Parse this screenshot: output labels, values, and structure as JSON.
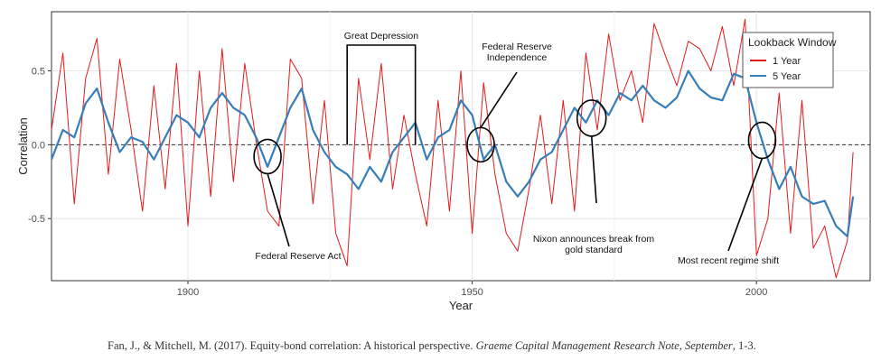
{
  "chart_data": {
    "type": "line",
    "title": "",
    "xlabel": "Year",
    "ylabel": "Correlation",
    "xlim": [
      1876,
      2020
    ],
    "ylim": [
      -0.92,
      0.9
    ],
    "x_ticks": [
      1900,
      1950,
      2000
    ],
    "y_ticks": [
      -0.5,
      0.0,
      0.5
    ],
    "x_tick_labels": [
      "1900",
      "1950",
      "2000"
    ],
    "y_tick_labels": [
      "-0.5",
      "0.0",
      "0.5"
    ],
    "reference_line": {
      "y": 0.0,
      "style": "dashed"
    },
    "grid": true,
    "legend": {
      "title": "Lookback Window",
      "placement": "top-right",
      "entries": [
        {
          "label": "1 Year",
          "color": "#e41a1c"
        },
        {
          "label": "5 Year",
          "color": "#377eb8"
        }
      ]
    },
    "series": [
      {
        "name": "1 Year",
        "color": "#e41a1c",
        "description": "high-frequency oscillation around the 5 Year series",
        "x": [
          1876,
          1878,
          1880,
          1882,
          1884,
          1886,
          1888,
          1890,
          1892,
          1894,
          1896,
          1898,
          1900,
          1902,
          1904,
          1906,
          1908,
          1910,
          1912,
          1914,
          1916,
          1918,
          1920,
          1922,
          1924,
          1926,
          1928,
          1930,
          1932,
          1934,
          1936,
          1938,
          1940,
          1942,
          1944,
          1946,
          1948,
          1950,
          1952,
          1954,
          1956,
          1958,
          1960,
          1962,
          1964,
          1966,
          1968,
          1970,
          1972,
          1974,
          1976,
          1978,
          1980,
          1982,
          1984,
          1986,
          1988,
          1990,
          1992,
          1994,
          1996,
          1998,
          2000,
          2002,
          2004,
          2006,
          2008,
          2010,
          2012,
          2014,
          2016,
          2017
        ],
        "y": [
          0.1,
          0.62,
          -0.4,
          0.45,
          0.72,
          -0.2,
          0.58,
          0.1,
          -0.45,
          0.4,
          -0.3,
          0.55,
          -0.55,
          0.5,
          -0.35,
          0.65,
          -0.25,
          0.55,
          0.02,
          -0.45,
          -0.55,
          0.58,
          0.45,
          -0.4,
          0.3,
          -0.6,
          -0.82,
          0.45,
          -0.1,
          0.55,
          -0.3,
          0.2,
          -0.2,
          -0.55,
          0.3,
          -0.45,
          0.5,
          -0.6,
          0.42,
          -0.2,
          -0.6,
          -0.72,
          -0.3,
          0.2,
          -0.4,
          0.3,
          -0.45,
          0.62,
          0.1,
          0.75,
          0.3,
          0.5,
          0.15,
          0.82,
          0.6,
          0.4,
          0.7,
          0.65,
          0.5,
          0.8,
          0.4,
          0.85,
          -0.75,
          -0.5,
          0.35,
          -0.6,
          0.3,
          -0.7,
          -0.55,
          -0.9,
          -0.65,
          -0.05
        ]
      },
      {
        "name": "5 Year",
        "color": "#377eb8",
        "description": "smoother trend series",
        "x": [
          1876,
          1878,
          1880,
          1882,
          1884,
          1886,
          1888,
          1890,
          1892,
          1894,
          1896,
          1898,
          1900,
          1902,
          1904,
          1906,
          1908,
          1910,
          1912,
          1914,
          1916,
          1918,
          1920,
          1922,
          1924,
          1926,
          1928,
          1930,
          1932,
          1934,
          1936,
          1938,
          1940,
          1942,
          1944,
          1946,
          1948,
          1950,
          1952,
          1954,
          1956,
          1958,
          1960,
          1962,
          1964,
          1966,
          1968,
          1970,
          1972,
          1974,
          1976,
          1978,
          1980,
          1982,
          1984,
          1986,
          1988,
          1990,
          1992,
          1994,
          1996,
          1998,
          2000,
          2002,
          2004,
          2006,
          2008,
          2010,
          2012,
          2014,
          2016,
          2017
        ],
        "y": [
          -0.1,
          0.1,
          0.05,
          0.28,
          0.38,
          0.15,
          -0.05,
          0.05,
          0.02,
          -0.1,
          0.05,
          0.2,
          0.15,
          0.05,
          0.25,
          0.35,
          0.25,
          0.2,
          0.05,
          -0.15,
          0.05,
          0.25,
          0.38,
          0.1,
          -0.05,
          -0.15,
          -0.2,
          -0.3,
          -0.15,
          -0.25,
          -0.05,
          0.05,
          0.15,
          -0.1,
          0.05,
          0.1,
          0.3,
          0.2,
          -0.1,
          0.0,
          -0.25,
          -0.35,
          -0.25,
          -0.1,
          -0.05,
          0.1,
          0.25,
          0.15,
          0.3,
          0.2,
          0.35,
          0.3,
          0.4,
          0.3,
          0.25,
          0.32,
          0.5,
          0.38,
          0.32,
          0.3,
          0.48,
          0.45,
          0.15,
          -0.1,
          -0.3,
          -0.15,
          -0.35,
          -0.4,
          -0.38,
          -0.55,
          -0.62,
          -0.35
        ]
      }
    ],
    "annotations": [
      {
        "text": [
          "Great Depression"
        ],
        "type": "bracket",
        "x_range": [
          1928,
          1940
        ]
      },
      {
        "text": [
          "Federal Reserve Act"
        ],
        "type": "circle",
        "x": 1914,
        "y": -0.08
      },
      {
        "text": [
          "Federal Reserve",
          "Independence"
        ],
        "type": "circle",
        "x": 1951.5,
        "y": 0.0
      },
      {
        "text": [
          "Nixon announces break from",
          "gold standard"
        ],
        "type": "circle",
        "x": 1971,
        "y": 0.18
      },
      {
        "text": [
          "Most recent regime shift"
        ],
        "type": "circle",
        "x": 2001,
        "y": 0.03
      }
    ]
  },
  "citation": {
    "plain": "Fan, J., & Mitchell, M. (2017). Equity-bond correlation: A historical perspective. ",
    "italic": "Graeme Capital Management Research Note, September",
    "tail": ", 1-3."
  }
}
